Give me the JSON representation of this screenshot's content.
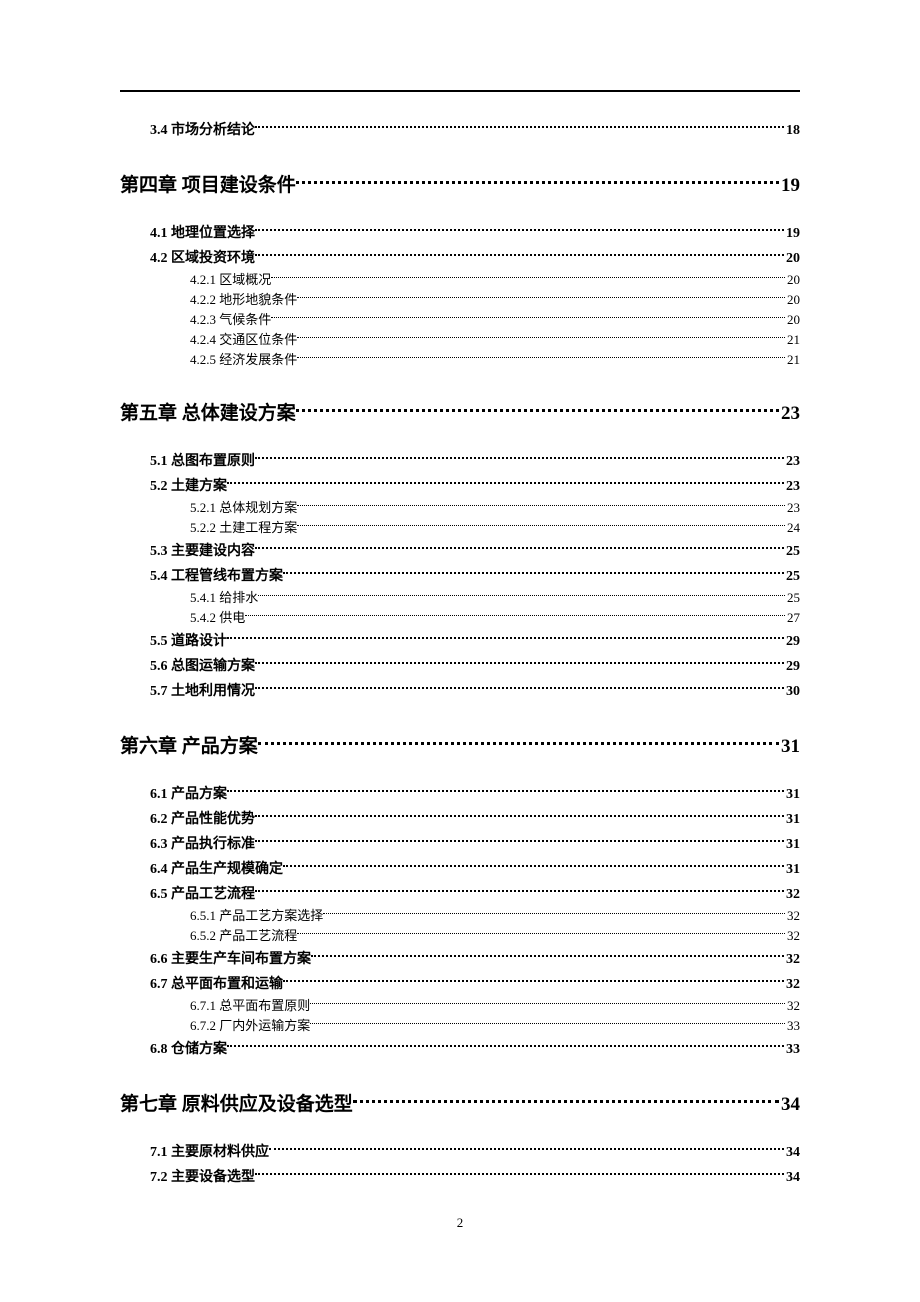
{
  "page_number": "2",
  "toc": [
    {
      "level": 2,
      "num": "3.4",
      "title": " 市场分析结论",
      "page": "18"
    },
    {
      "level": 1,
      "num": "第四章",
      "title": " 项目建设条件",
      "page": "19"
    },
    {
      "level": 2,
      "num": "4.1",
      "title": " 地理位置选择",
      "page": "19"
    },
    {
      "level": 2,
      "num": "4.2",
      "title": " 区域投资环境",
      "page": "20"
    },
    {
      "level": 3,
      "num": "4.2.1",
      "title": " 区域概况",
      "page": "20"
    },
    {
      "level": 3,
      "num": "4.2.2",
      "title": " 地形地貌条件",
      "page": "20"
    },
    {
      "level": 3,
      "num": "4.2.3",
      "title": " 气候条件",
      "page": "20"
    },
    {
      "level": 3,
      "num": "4.2.4",
      "title": " 交通区位条件",
      "page": "21"
    },
    {
      "level": 3,
      "num": "4.2.5",
      "title": " 经济发展条件",
      "page": "21"
    },
    {
      "level": 1,
      "num": "第五章",
      "title": " 总体建设方案",
      "page": "23"
    },
    {
      "level": 2,
      "num": "5.1",
      "title": " 总图布置原则",
      "page": "23"
    },
    {
      "level": 2,
      "num": "5.2",
      "title": " 土建方案",
      "page": "23"
    },
    {
      "level": 3,
      "num": "5.2.1",
      "title": " 总体规划方案",
      "page": "23"
    },
    {
      "level": 3,
      "num": "5.2.2",
      "title": " 土建工程方案",
      "page": "24"
    },
    {
      "level": 2,
      "num": "5.3",
      "title": " 主要建设内容",
      "page": "25"
    },
    {
      "level": 2,
      "num": "5.4",
      "title": " 工程管线布置方案",
      "page": "25"
    },
    {
      "level": 3,
      "num": "5.4.1",
      "title": " 给排水",
      "page": "25"
    },
    {
      "level": 3,
      "num": "5.4.2",
      "title": " 供电",
      "page": "27"
    },
    {
      "level": 2,
      "num": "5.5",
      "title": " 道路设计",
      "page": "29"
    },
    {
      "level": 2,
      "num": "5.6",
      "title": " 总图运输方案",
      "page": "29"
    },
    {
      "level": 2,
      "num": "5.7",
      "title": " 土地利用情况",
      "page": "30"
    },
    {
      "level": 1,
      "num": "第六章",
      "title": " 产品方案",
      "page": "31"
    },
    {
      "level": 2,
      "num": "6.1",
      "title": " 产品方案",
      "page": "31"
    },
    {
      "level": 2,
      "num": "6.2",
      "title": " 产品性能优势",
      "page": "31"
    },
    {
      "level": 2,
      "num": "6.3",
      "title": " 产品执行标准",
      "page": "31"
    },
    {
      "level": 2,
      "num": "6.4",
      "title": " 产品生产规模确定",
      "page": "31"
    },
    {
      "level": 2,
      "num": "6.5",
      "title": " 产品工艺流程",
      "page": "32"
    },
    {
      "level": 3,
      "num": "6.5.1",
      "title": " 产品工艺方案选择",
      "page": "32"
    },
    {
      "level": 3,
      "num": "6.5.2",
      "title": " 产品工艺流程",
      "page": "32"
    },
    {
      "level": 2,
      "num": "6.6",
      "title": " 主要生产车间布置方案",
      "page": "32"
    },
    {
      "level": 2,
      "num": "6.7",
      "title": " 总平面布置和运输",
      "page": "32"
    },
    {
      "level": 3,
      "num": "6.7.1",
      "title": " 总平面布置原则",
      "page": "32"
    },
    {
      "level": 3,
      "num": "6.7.2",
      "title": " 厂内外运输方案",
      "page": "33"
    },
    {
      "level": 2,
      "num": "6.8",
      "title": " 仓储方案",
      "page": "33"
    },
    {
      "level": 1,
      "num": "第七章",
      "title": " 原料供应及设备选型",
      "page": "34"
    },
    {
      "level": 2,
      "num": "7.1",
      "title": " 主要原材料供应",
      "page": "34"
    },
    {
      "level": 2,
      "num": "7.2",
      "title": " 主要设备选型",
      "page": "34"
    }
  ]
}
